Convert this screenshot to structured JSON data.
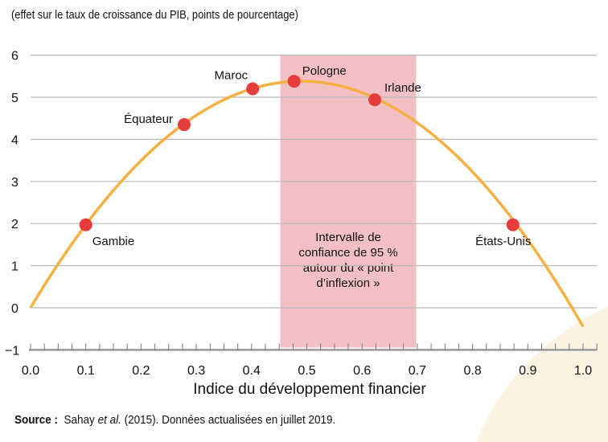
{
  "chart_data": {
    "type": "line",
    "subtitle": "(effet sur le taux de croissance du PIB, points de pourcentage)",
    "xlabel": "Indice du développement financier",
    "ylabel": "",
    "xlim": [
      0.0,
      1.0
    ],
    "ylim": [
      -1,
      6
    ],
    "x_ticks": [
      "0.0",
      "0.1",
      "0.2",
      "0.3",
      "0.4",
      "0.5",
      "0.6",
      "0.7",
      "0.8",
      "0.9",
      "1.0"
    ],
    "y_ticks": [
      "−1",
      "0",
      "1",
      "2",
      "3",
      "4",
      "5",
      "6"
    ],
    "grid": true,
    "curve": {
      "peak_x": 0.49,
      "peak_y": 5.38,
      "x_start": 0.0,
      "x_end": 1.0,
      "color": "#f5b041"
    },
    "points": [
      {
        "label": "Gambie",
        "x": 0.1,
        "y": 1.97
      },
      {
        "label": "Équateur",
        "x": 0.278,
        "y": 4.35
      },
      {
        "label": "Maroc",
        "x": 0.402,
        "y": 5.2
      },
      {
        "label": "Pologne",
        "x": 0.477,
        "y": 5.38
      },
      {
        "label": "Irlande",
        "x": 0.623,
        "y": 4.94
      },
      {
        "label": "États-Unis",
        "x": 0.873,
        "y": 1.97
      }
    ],
    "point_color": "#e63c3c",
    "band": {
      "x0": 0.452,
      "x1": 0.698,
      "color": "#f4c0c4",
      "label_lines": [
        "Intervalle de",
        "confiance de 95 %",
        "autour du « point",
        "d’inflexion »"
      ]
    }
  },
  "source": {
    "prefix": "Source :",
    "author": "Sahay",
    "etal": "et al.",
    "rest": "(2015). Données actualisées en juillet 2019."
  }
}
